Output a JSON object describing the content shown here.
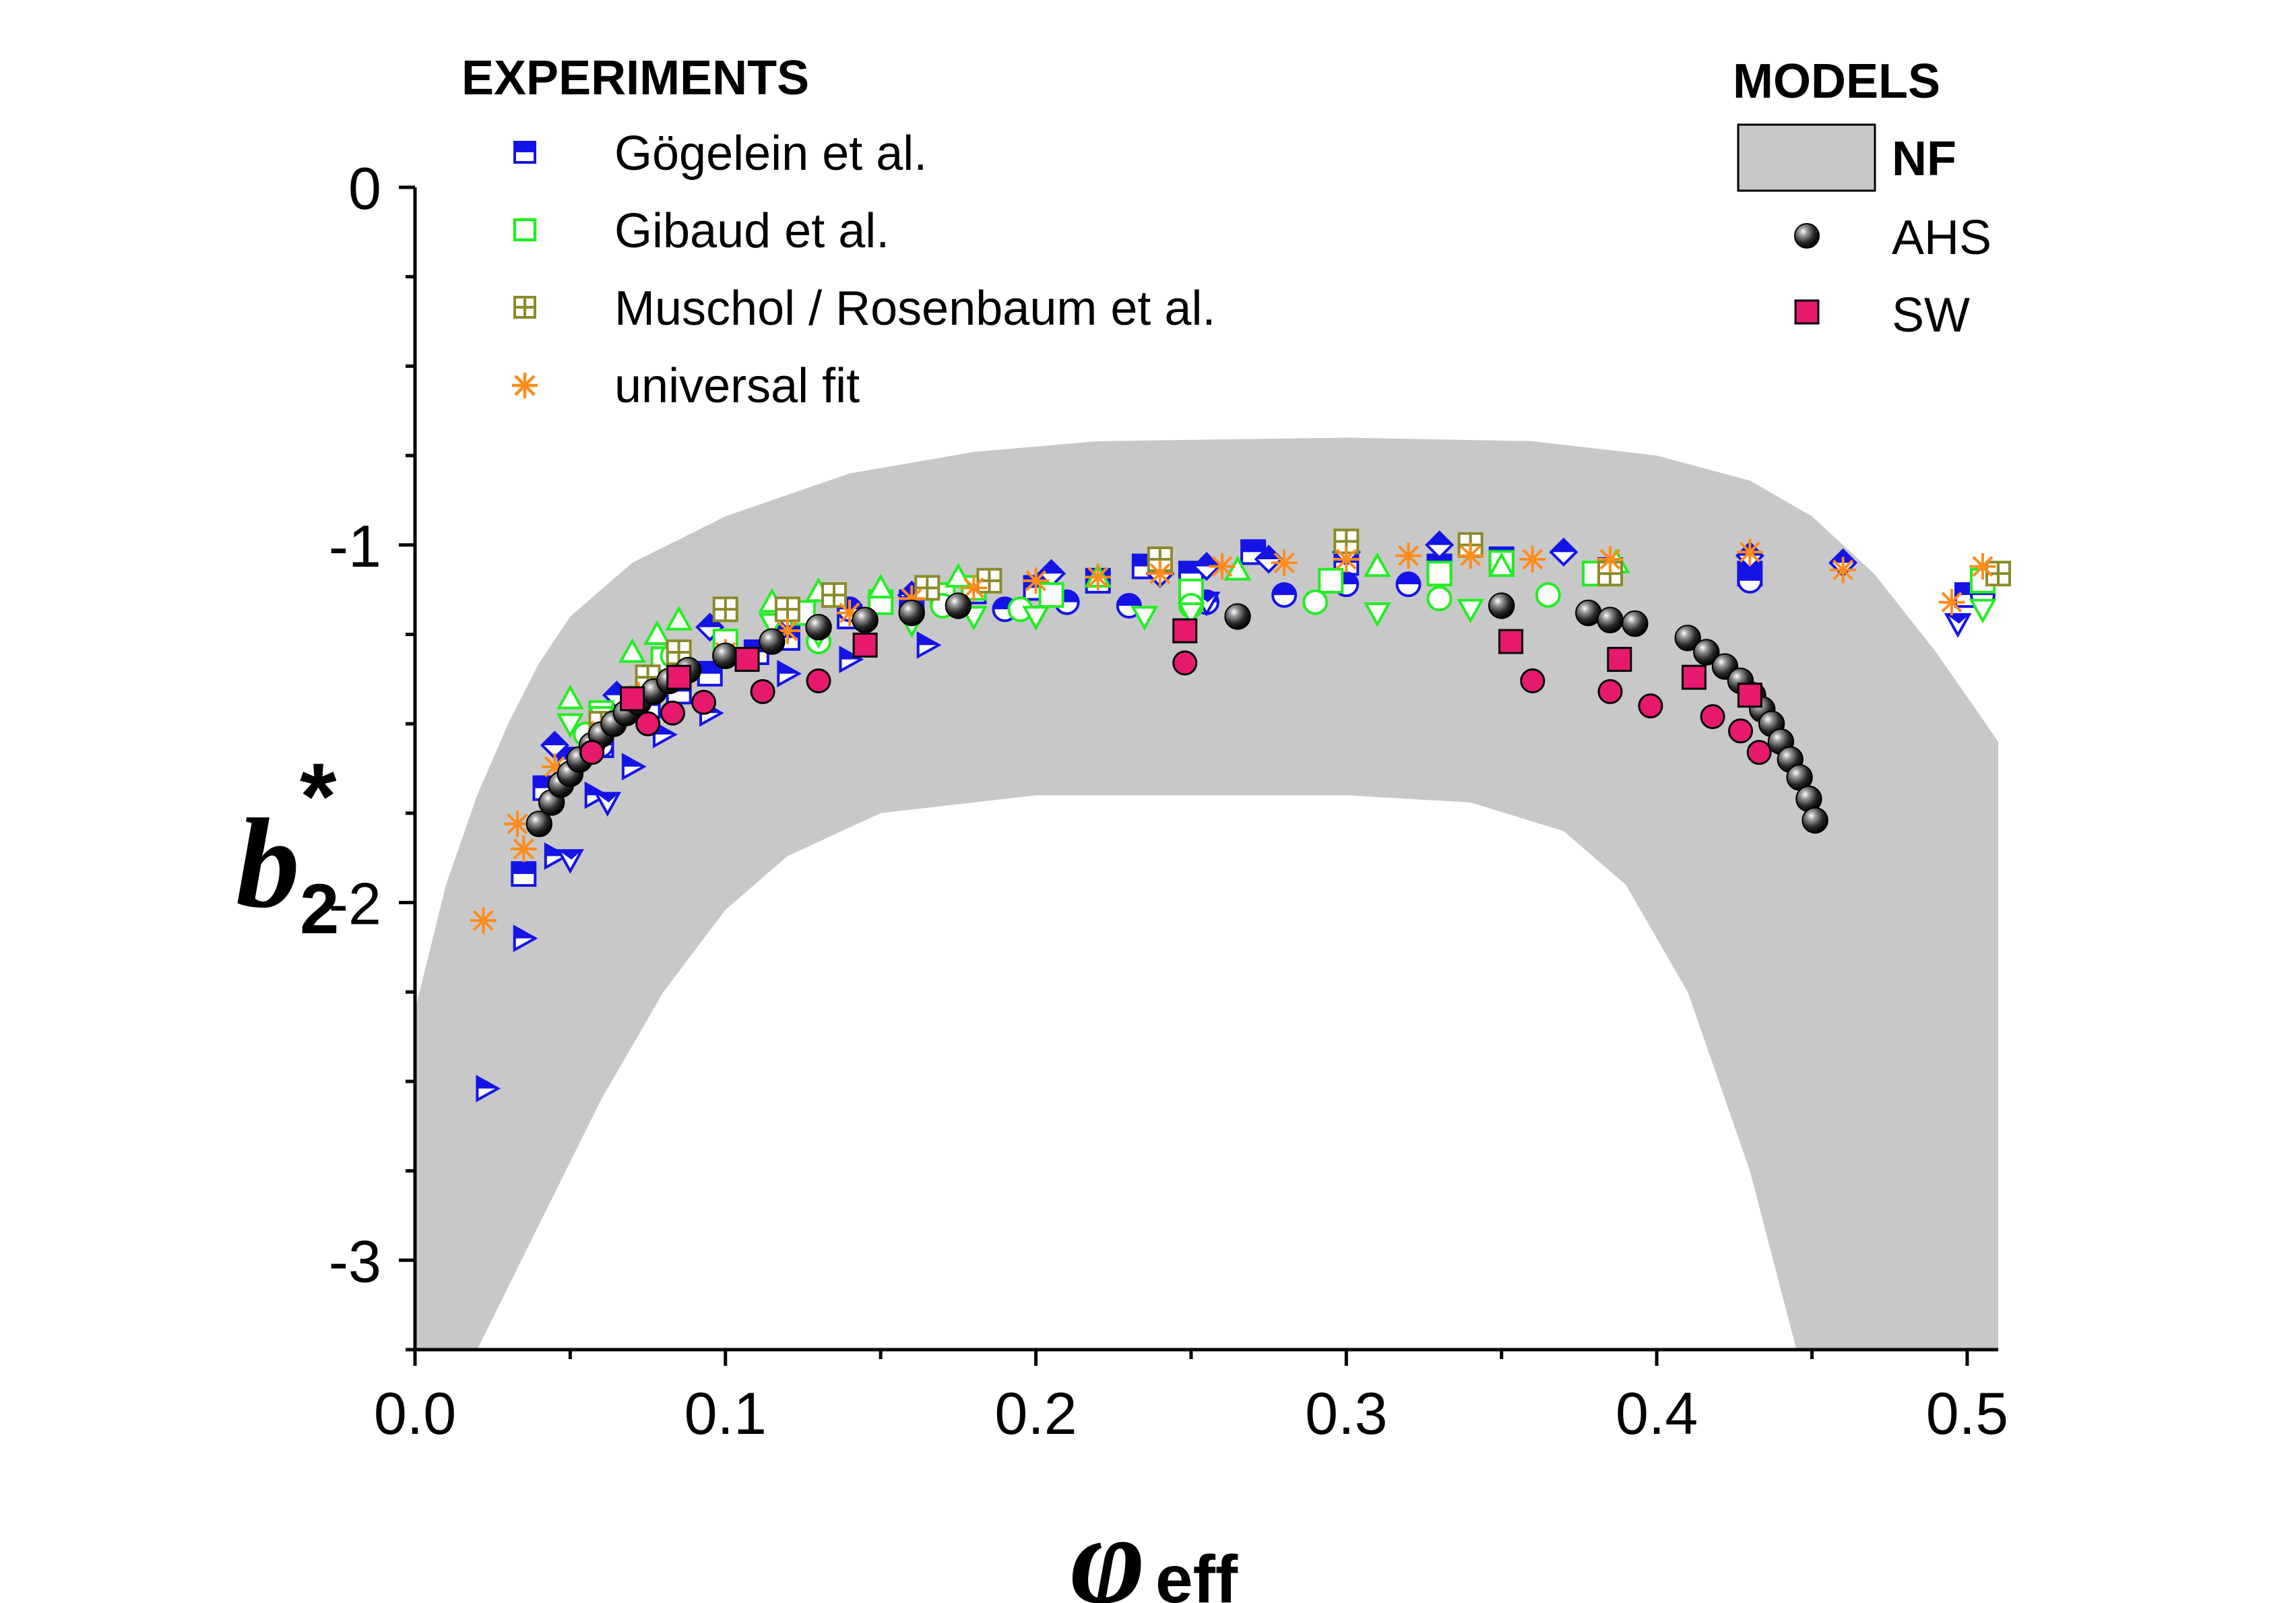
{
  "chart_data": {
    "type": "scatter",
    "xlabel": "φ",
    "xlabel_sub": "eff",
    "ylabel": "b",
    "ylabel_sub": "2",
    "ylabel_sup": "*",
    "xlim": [
      0.0,
      0.51
    ],
    "ylim": [
      -3.25,
      0.0
    ],
    "x_ticks": [
      "0.0",
      "0.1",
      "0.2",
      "0.3",
      "0.4",
      "0.5"
    ],
    "x_tick_values": [
      0.0,
      0.1,
      0.2,
      0.3,
      0.4,
      0.5
    ],
    "y_ticks": [
      "0",
      "-1",
      "-2",
      "-3"
    ],
    "y_tick_values": [
      0,
      -1,
      -2,
      -3
    ],
    "legend_experiments": {
      "title": "EXPERIMENTS",
      "entries": [
        "Gögelein et al.",
        "Gibaud et al.",
        "Muschol / Rosenbaum et al.",
        "universal fit"
      ]
    },
    "legend_models": {
      "title": "MODELS",
      "entries": [
        "NF",
        "AHS",
        "SW"
      ]
    },
    "colors": {
      "blue": "#1414e6",
      "green": "#22ee22",
      "olive": "#8a8a2a",
      "orange": "#ff8c1a",
      "gray": "#c8c8c8",
      "pink": "#e6196e"
    },
    "nf_band": {
      "upper": [
        [
          0.0,
          -2.3
        ],
        [
          0.01,
          -1.95
        ],
        [
          0.02,
          -1.7
        ],
        [
          0.03,
          -1.5
        ],
        [
          0.04,
          -1.33
        ],
        [
          0.05,
          -1.2
        ],
        [
          0.07,
          -1.05
        ],
        [
          0.1,
          -0.92
        ],
        [
          0.14,
          -0.8
        ],
        [
          0.18,
          -0.74
        ],
        [
          0.22,
          -0.71
        ],
        [
          0.3,
          -0.7
        ],
        [
          0.36,
          -0.71
        ],
        [
          0.4,
          -0.75
        ],
        [
          0.43,
          -0.82
        ],
        [
          0.45,
          -0.92
        ],
        [
          0.47,
          -1.08
        ],
        [
          0.49,
          -1.3
        ],
        [
          0.51,
          -1.55
        ]
      ],
      "lower": [
        [
          0.0,
          -3.25
        ],
        [
          0.02,
          -3.25
        ],
        [
          0.04,
          -2.9
        ],
        [
          0.06,
          -2.55
        ],
        [
          0.08,
          -2.25
        ],
        [
          0.1,
          -2.02
        ],
        [
          0.12,
          -1.87
        ],
        [
          0.15,
          -1.75
        ],
        [
          0.2,
          -1.7
        ],
        [
          0.3,
          -1.7
        ],
        [
          0.34,
          -1.72
        ],
        [
          0.37,
          -1.8
        ],
        [
          0.39,
          -1.95
        ],
        [
          0.41,
          -2.25
        ],
        [
          0.43,
          -2.75
        ],
        [
          0.445,
          -3.25
        ],
        [
          0.51,
          -3.25
        ]
      ]
    },
    "series": [
      {
        "name": "Gögelein et al.",
        "marker": "square-half",
        "color": "#1414e6",
        "points": [
          [
            0.035,
            -1.92
          ],
          [
            0.042,
            -1.68
          ],
          [
            0.05,
            -1.6
          ],
          [
            0.06,
            -1.56
          ],
          [
            0.075,
            -1.45
          ],
          [
            0.085,
            -1.41
          ],
          [
            0.095,
            -1.36
          ],
          [
            0.11,
            -1.3
          ],
          [
            0.12,
            -1.26
          ],
          [
            0.14,
            -1.2
          ],
          [
            0.16,
            -1.16
          ],
          [
            0.18,
            -1.13
          ],
          [
            0.2,
            -1.12
          ],
          [
            0.22,
            -1.1
          ],
          [
            0.235,
            -1.06
          ],
          [
            0.25,
            -1.08
          ],
          [
            0.27,
            -1.02
          ],
          [
            0.3,
            -1.05
          ],
          [
            0.33,
            -1.06
          ],
          [
            0.35,
            -1.04
          ],
          [
            0.385,
            -1.07
          ],
          [
            0.43,
            -1.08
          ],
          [
            0.5,
            -1.14
          ]
        ]
      },
      {
        "name": "Gögelein triangles",
        "marker": "triangle-right-half",
        "color": "#1414e6",
        "points": [
          [
            0.023,
            -2.52
          ],
          [
            0.035,
            -2.1
          ],
          [
            0.045,
            -1.87
          ],
          [
            0.058,
            -1.7
          ],
          [
            0.07,
            -1.62
          ],
          [
            0.08,
            -1.53
          ],
          [
            0.095,
            -1.47
          ],
          [
            0.12,
            -1.36
          ],
          [
            0.14,
            -1.32
          ],
          [
            0.165,
            -1.28
          ]
        ]
      },
      {
        "name": "Gögelein diamonds",
        "marker": "diamond-half",
        "color": "#1414e6",
        "points": [
          [
            0.045,
            -1.56
          ],
          [
            0.065,
            -1.42
          ],
          [
            0.095,
            -1.23
          ],
          [
            0.12,
            -1.2
          ],
          [
            0.16,
            -1.14
          ],
          [
            0.205,
            -1.08
          ],
          [
            0.24,
            -1.08
          ],
          [
            0.255,
            -1.06
          ],
          [
            0.275,
            -1.04
          ],
          [
            0.3,
            -1.02
          ],
          [
            0.33,
            -1.0
          ],
          [
            0.37,
            -1.02
          ],
          [
            0.43,
            -1.03
          ],
          [
            0.46,
            -1.05
          ]
        ]
      },
      {
        "name": "Gögelein circles",
        "marker": "circle-half",
        "color": "#1414e6",
        "points": [
          [
            0.06,
            -1.56
          ],
          [
            0.085,
            -1.37
          ],
          [
            0.1,
            -1.3
          ],
          [
            0.14,
            -1.18
          ],
          [
            0.16,
            -1.17
          ],
          [
            0.19,
            -1.18
          ],
          [
            0.21,
            -1.16
          ],
          [
            0.23,
            -1.17
          ],
          [
            0.255,
            -1.16
          ],
          [
            0.28,
            -1.14
          ],
          [
            0.3,
            -1.11
          ],
          [
            0.32,
            -1.11
          ],
          [
            0.43,
            -1.1
          ],
          [
            0.505,
            -1.14
          ]
        ]
      },
      {
        "name": "Gögelein down triangles",
        "marker": "triangle-down-half",
        "color": "#1414e6",
        "points": [
          [
            0.05,
            -1.88
          ],
          [
            0.062,
            -1.72
          ],
          [
            0.2,
            -1.2
          ],
          [
            0.255,
            -1.16
          ],
          [
            0.497,
            -1.22
          ]
        ]
      },
      {
        "name": "Gibaud et al.",
        "marker": "square-open",
        "color": "#22ee22",
        "points": [
          [
            0.06,
            -1.47
          ],
          [
            0.08,
            -1.32
          ],
          [
            0.1,
            -1.27
          ],
          [
            0.125,
            -1.19
          ],
          [
            0.15,
            -1.16
          ],
          [
            0.17,
            -1.14
          ],
          [
            0.18,
            -1.12
          ],
          [
            0.205,
            -1.14
          ],
          [
            0.25,
            -1.13
          ],
          [
            0.295,
            -1.1
          ],
          [
            0.33,
            -1.08
          ],
          [
            0.35,
            -1.05
          ],
          [
            0.38,
            -1.08
          ],
          [
            0.505,
            -1.1
          ]
        ]
      },
      {
        "name": "Gibaud circles",
        "marker": "circle-open",
        "color": "#22ee22",
        "points": [
          [
            0.055,
            -1.53
          ],
          [
            0.07,
            -1.46
          ],
          [
            0.083,
            -1.31
          ],
          [
            0.13,
            -1.27
          ],
          [
            0.17,
            -1.17
          ],
          [
            0.195,
            -1.18
          ],
          [
            0.25,
            -1.17
          ],
          [
            0.29,
            -1.16
          ],
          [
            0.33,
            -1.15
          ],
          [
            0.365,
            -1.14
          ]
        ]
      },
      {
        "name": "Gibaud triangles",
        "marker": "triangle-up-open",
        "color": "#22ee22",
        "points": [
          [
            0.05,
            -1.43
          ],
          [
            0.07,
            -1.3
          ],
          [
            0.078,
            -1.25
          ],
          [
            0.085,
            -1.21
          ],
          [
            0.115,
            -1.16
          ],
          [
            0.13,
            -1.13
          ],
          [
            0.15,
            -1.12
          ],
          [
            0.175,
            -1.09
          ],
          [
            0.22,
            -1.09
          ],
          [
            0.265,
            -1.07
          ],
          [
            0.31,
            -1.06
          ],
          [
            0.35,
            -1.06
          ],
          [
            0.387,
            -1.05
          ]
        ]
      },
      {
        "name": "Gibaud down triangles",
        "marker": "triangle-down-open",
        "color": "#22ee22",
        "points": [
          [
            0.05,
            -1.5
          ],
          [
            0.06,
            -1.48
          ],
          [
            0.115,
            -1.22
          ],
          [
            0.13,
            -1.25
          ],
          [
            0.16,
            -1.22
          ],
          [
            0.18,
            -1.2
          ],
          [
            0.2,
            -1.2
          ],
          [
            0.235,
            -1.2
          ],
          [
            0.25,
            -1.19
          ],
          [
            0.31,
            -1.19
          ],
          [
            0.34,
            -1.18
          ],
          [
            0.505,
            -1.18
          ]
        ]
      },
      {
        "name": "Muschol / Rosenbaum et al.",
        "marker": "square-plus",
        "color": "#8a8a2a",
        "points": [
          [
            0.06,
            -1.5
          ],
          [
            0.075,
            -1.37
          ],
          [
            0.085,
            -1.3
          ],
          [
            0.1,
            -1.18
          ],
          [
            0.12,
            -1.18
          ],
          [
            0.135,
            -1.14
          ],
          [
            0.165,
            -1.12
          ],
          [
            0.185,
            -1.1
          ],
          [
            0.24,
            -1.04
          ],
          [
            0.3,
            -0.99
          ],
          [
            0.34,
            -1.0
          ],
          [
            0.385,
            -1.08
          ],
          [
            0.51,
            -1.08
          ]
        ]
      },
      {
        "name": "universal fit",
        "marker": "asterisk",
        "color": "#ff8c1a",
        "points": [
          [
            0.022,
            -2.05
          ],
          [
            0.033,
            -1.78
          ],
          [
            0.035,
            -1.85
          ],
          [
            0.045,
            -1.62
          ],
          [
            0.06,
            -1.52
          ],
          [
            0.072,
            -1.42
          ],
          [
            0.085,
            -1.36
          ],
          [
            0.1,
            -1.3
          ],
          [
            0.12,
            -1.24
          ],
          [
            0.14,
            -1.19
          ],
          [
            0.16,
            -1.15
          ],
          [
            0.18,
            -1.12
          ],
          [
            0.2,
            -1.1
          ],
          [
            0.22,
            -1.09
          ],
          [
            0.24,
            -1.08
          ],
          [
            0.26,
            -1.06
          ],
          [
            0.28,
            -1.05
          ],
          [
            0.3,
            -1.04
          ],
          [
            0.32,
            -1.03
          ],
          [
            0.34,
            -1.03
          ],
          [
            0.36,
            -1.04
          ],
          [
            0.385,
            -1.04
          ],
          [
            0.43,
            -1.02
          ],
          [
            0.46,
            -1.07
          ],
          [
            0.495,
            -1.16
          ],
          [
            0.505,
            -1.06
          ]
        ]
      },
      {
        "name": "AHS",
        "marker": "ball",
        "color": "#000000",
        "points": [
          [
            0.04,
            -1.78
          ],
          [
            0.044,
            -1.72
          ],
          [
            0.047,
            -1.67
          ],
          [
            0.05,
            -1.64
          ],
          [
            0.053,
            -1.6
          ],
          [
            0.057,
            -1.56
          ],
          [
            0.06,
            -1.53
          ],
          [
            0.064,
            -1.5
          ],
          [
            0.068,
            -1.47
          ],
          [
            0.072,
            -1.44
          ],
          [
            0.077,
            -1.41
          ],
          [
            0.082,
            -1.38
          ],
          [
            0.088,
            -1.35
          ],
          [
            0.1,
            -1.31
          ],
          [
            0.115,
            -1.27
          ],
          [
            0.13,
            -1.23
          ],
          [
            0.145,
            -1.21
          ],
          [
            0.16,
            -1.19
          ],
          [
            0.175,
            -1.17
          ],
          [
            0.265,
            -1.2
          ],
          [
            0.35,
            -1.17
          ],
          [
            0.378,
            -1.19
          ],
          [
            0.385,
            -1.21
          ],
          [
            0.393,
            -1.22
          ],
          [
            0.41,
            -1.26
          ],
          [
            0.416,
            -1.3
          ],
          [
            0.422,
            -1.34
          ],
          [
            0.427,
            -1.38
          ],
          [
            0.431,
            -1.42
          ],
          [
            0.434,
            -1.46
          ],
          [
            0.437,
            -1.5
          ],
          [
            0.44,
            -1.55
          ],
          [
            0.443,
            -1.6
          ],
          [
            0.446,
            -1.65
          ],
          [
            0.449,
            -1.71
          ],
          [
            0.451,
            -1.77
          ]
        ]
      },
      {
        "name": "SW squares",
        "marker": "square-filled",
        "color": "#e6196e",
        "points": [
          [
            0.07,
            -1.43
          ],
          [
            0.085,
            -1.37
          ],
          [
            0.107,
            -1.32
          ],
          [
            0.145,
            -1.28
          ],
          [
            0.248,
            -1.24
          ],
          [
            0.353,
            -1.27
          ],
          [
            0.388,
            -1.32
          ],
          [
            0.412,
            -1.37
          ],
          [
            0.43,
            -1.42
          ]
        ]
      },
      {
        "name": "SW circles",
        "marker": "circle-filled",
        "color": "#e6196e",
        "points": [
          [
            0.057,
            -1.58
          ],
          [
            0.075,
            -1.5
          ],
          [
            0.083,
            -1.47
          ],
          [
            0.093,
            -1.44
          ],
          [
            0.112,
            -1.41
          ],
          [
            0.13,
            -1.38
          ],
          [
            0.248,
            -1.33
          ],
          [
            0.36,
            -1.38
          ],
          [
            0.385,
            -1.41
          ],
          [
            0.398,
            -1.45
          ],
          [
            0.418,
            -1.48
          ],
          [
            0.427,
            -1.52
          ],
          [
            0.433,
            -1.58
          ]
        ]
      }
    ]
  }
}
